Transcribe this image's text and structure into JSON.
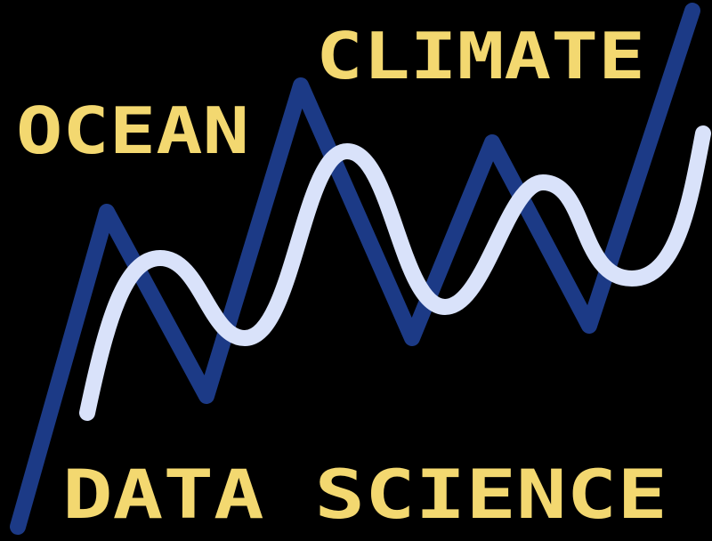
{
  "logo": {
    "words": {
      "top": "CLIMATE",
      "left": "OCEAN",
      "bottom": "DATA SCIENCE"
    },
    "colors": {
      "background": "#000000",
      "text": "#f3d870",
      "dark_line": "#1c3a86",
      "light_line": "#d9e2fa"
    }
  }
}
